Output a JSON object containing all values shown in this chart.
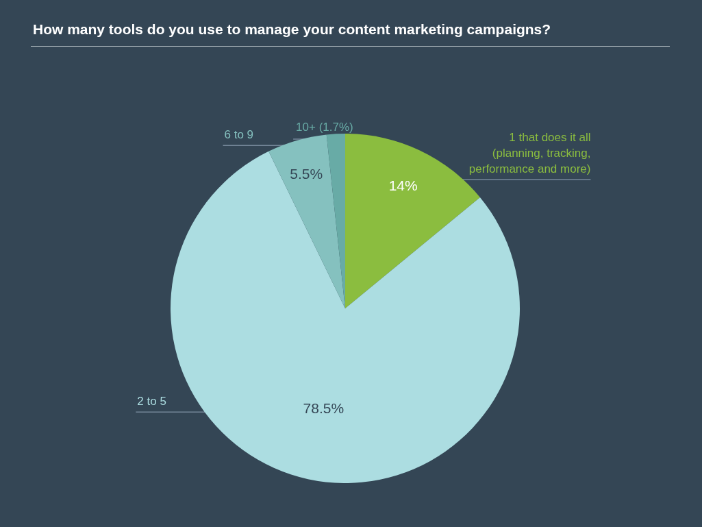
{
  "chart_data": {
    "type": "pie",
    "title": "How many tools do you use to manage your content marketing campaigns?",
    "categories": [
      "1 that does it all (planning, tracking, performance and more)",
      "2 to 5",
      "6 to 9",
      "10+ (1.7%)"
    ],
    "values": [
      14,
      78.5,
      5.5,
      1.7
    ],
    "colors": [
      "#8bbd3f",
      "#acdde1",
      "#85c1bf",
      "#68aba6"
    ],
    "value_labels": [
      "14%",
      "78.5%",
      "5.5%",
      null
    ],
    "legend": false
  }
}
